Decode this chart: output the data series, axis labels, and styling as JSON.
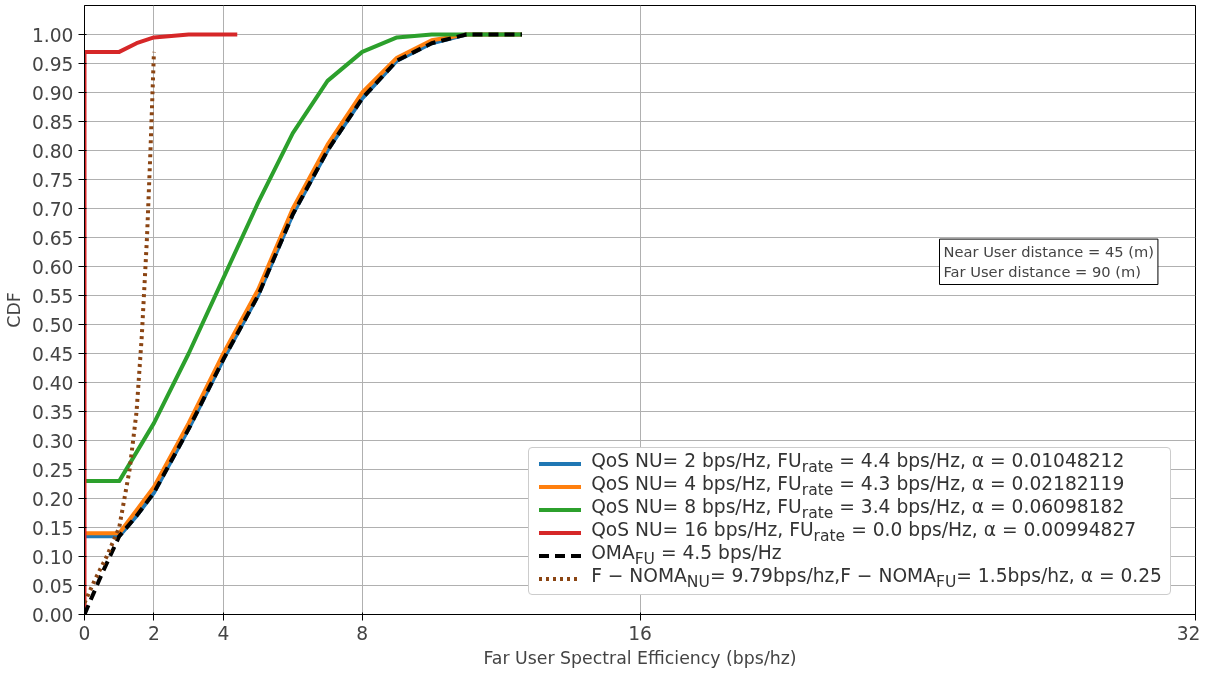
{
  "chart_data": {
    "type": "line",
    "xlabel": "Far User Spectral Efficiency (bps/hz)",
    "ylabel": "CDF",
    "xlim": [
      0,
      32
    ],
    "xticks": [
      0,
      2,
      4,
      8,
      16,
      32
    ],
    "ylim": [
      0,
      1.05
    ],
    "yticks": [
      {
        "value": 0,
        "label": "0.00"
      },
      {
        "value": 0.05,
        "label": "0.05"
      },
      {
        "value": 0.1,
        "label": "0.10"
      },
      {
        "value": 0.15,
        "label": "0.15"
      },
      {
        "value": 0.2,
        "label": "0.20"
      },
      {
        "value": 0.25,
        "label": "0.25"
      },
      {
        "value": 0.3,
        "label": "0.30"
      },
      {
        "value": 0.35,
        "label": "0.35"
      },
      {
        "value": 0.4,
        "label": "0.40"
      },
      {
        "value": 0.45,
        "label": "0.45"
      },
      {
        "value": 0.5,
        "label": "0.50"
      },
      {
        "value": 0.55,
        "label": "0.55"
      },
      {
        "value": 0.6,
        "label": "0.60"
      },
      {
        "value": 0.65,
        "label": "0.65"
      },
      {
        "value": 0.7,
        "label": "0.70"
      },
      {
        "value": 0.75,
        "label": "0.75"
      },
      {
        "value": 0.8,
        "label": "0.80"
      },
      {
        "value": 0.85,
        "label": "0.85"
      },
      {
        "value": 0.9,
        "label": "0.90"
      },
      {
        "value": 0.95,
        "label": "0.95"
      },
      {
        "value": 1.0,
        "label": "1.00"
      }
    ],
    "grid": true,
    "legend": "bottom right",
    "marker": "none",
    "annotations": [
      "Near User distance = 45 (m)",
      "Far User distance = 90 (m)"
    ],
    "series": [
      {
        "name": "QoS NU= 2 bps/Hz, FU$_{rate}$ = 4.4 bps/Hz, α = 0.01048212",
        "color": "#1f77b4",
        "line_style": "solid",
        "x": [
          0,
          1,
          1.5,
          2,
          3,
          4,
          5,
          6,
          7,
          8,
          9,
          10,
          11,
          12.6
        ],
        "values": [
          0.135,
          0.135,
          0.17,
          0.21,
          0.32,
          0.44,
          0.55,
          0.69,
          0.8,
          0.89,
          0.955,
          0.985,
          1.0,
          1.0
        ]
      },
      {
        "name": "QoS NU= 4 bps/Hz, FU$_{rate}$ = 4.3 bps/Hz, α = 0.02182119",
        "color": "#ff7f0e",
        "line_style": "solid",
        "x": [
          0,
          1,
          1.5,
          2,
          3,
          4,
          5,
          6,
          7,
          8,
          9,
          10,
          11,
          12.6
        ],
        "values": [
          0.14,
          0.14,
          0.18,
          0.22,
          0.33,
          0.45,
          0.56,
          0.7,
          0.81,
          0.9,
          0.96,
          0.99,
          1.0,
          1.0
        ]
      },
      {
        "name": "QoS NU= 8 bps/Hz, FU$_{rate}$ = 3.4 bps/Hz, α = 0.06098182",
        "color": "#2ca02c",
        "line_style": "solid",
        "x": [
          0,
          1,
          1.5,
          2,
          3,
          4,
          5,
          6,
          7,
          8,
          9,
          10,
          12.6
        ],
        "values": [
          0.23,
          0.23,
          0.28,
          0.33,
          0.45,
          0.58,
          0.71,
          0.83,
          0.92,
          0.97,
          0.995,
          1.0,
          1.0
        ]
      },
      {
        "name": "QoS NU= 16 bps/Hz, FU$_{rate}$ = 0.0 bps/Hz, α = 0.00994827",
        "color": "#d62728",
        "line_style": "solid",
        "x": [
          0,
          0,
          1,
          1.5,
          2,
          3,
          4.4
        ],
        "values": [
          0,
          0.97,
          0.97,
          0.985,
          0.995,
          1.0,
          1.0
        ]
      },
      {
        "name": "OMA$_{FU}$ = 4.5 bps/Hz",
        "color": "#000000",
        "line_style": "dashed",
        "x": [
          0,
          0.5,
          1,
          1.5,
          2,
          3,
          4,
          5,
          6,
          7,
          8,
          9,
          10,
          11,
          12.6
        ],
        "values": [
          0,
          0.07,
          0.135,
          0.17,
          0.21,
          0.32,
          0.44,
          0.55,
          0.69,
          0.8,
          0.89,
          0.955,
          0.985,
          1.0,
          1.0
        ]
      },
      {
        "name": "F − NOMA$_{NU}$= 9.79bps/hz,F − NOMA$_{FU}$= 1.5bps/hz, α = 0.25",
        "color": "#8b4513",
        "line_style": "dotted",
        "x": [
          0,
          0.3,
          0.64,
          1,
          1.3,
          1.5,
          1.65,
          1.8,
          1.9,
          2
        ],
        "values": [
          0.02,
          0.06,
          0.1,
          0.15,
          0.25,
          0.35,
          0.48,
          0.65,
          0.8,
          0.97
        ]
      }
    ]
  }
}
